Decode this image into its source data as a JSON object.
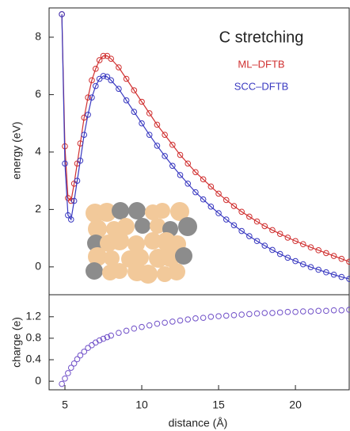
{
  "chart_data": [
    {
      "type": "line",
      "title": "C stretching",
      "ylabel": "energy (eV)",
      "x": [
        4.8,
        5.0,
        5.2,
        5.4,
        5.6,
        5.8,
        6.0,
        6.25,
        6.5,
        6.75,
        7.0,
        7.25,
        7.5,
        7.75,
        8.0,
        8.5,
        9,
        9.5,
        10,
        10.5,
        11,
        11.5,
        12,
        12.5,
        13,
        13.5,
        14,
        14.5,
        15,
        15.5,
        16,
        16.5,
        17,
        17.5,
        18,
        18.5,
        19,
        19.5,
        20,
        20.5,
        21,
        21.5,
        22,
        22.5,
        23,
        23.5
      ],
      "series": [
        {
          "name": "ML–DFTB",
          "color": "#d03030",
          "values": [
            8.8,
            4.2,
            2.4,
            2.3,
            2.9,
            3.6,
            4.3,
            5.2,
            5.9,
            6.5,
            6.9,
            7.2,
            7.35,
            7.35,
            7.25,
            6.95,
            6.55,
            6.15,
            5.75,
            5.35,
            4.95,
            4.6,
            4.25,
            3.9,
            3.6,
            3.3,
            3.05,
            2.8,
            2.55,
            2.33,
            2.12,
            1.92,
            1.75,
            1.58,
            1.42,
            1.28,
            1.15,
            1.02,
            0.9,
            0.79,
            0.68,
            0.58,
            0.48,
            0.38,
            0.28,
            0.18
          ]
        },
        {
          "name": "SCC–DFTB",
          "color": "#3838c0",
          "values": [
            8.8,
            3.6,
            1.8,
            1.65,
            2.3,
            3.0,
            3.7,
            4.6,
            5.3,
            5.9,
            6.3,
            6.55,
            6.65,
            6.62,
            6.5,
            6.2,
            5.8,
            5.4,
            5.0,
            4.6,
            4.22,
            3.86,
            3.52,
            3.2,
            2.9,
            2.6,
            2.35,
            2.1,
            1.87,
            1.65,
            1.45,
            1.25,
            1.07,
            0.9,
            0.74,
            0.59,
            0.45,
            0.32,
            0.2,
            0.09,
            -0.01,
            -0.1,
            -0.19,
            -0.27,
            -0.35,
            -0.42
          ]
        }
      ],
      "xlim": [
        3.97,
        23.5
      ],
      "ylim": [
        -0.97,
        9.02
      ],
      "yticks": [
        0,
        2,
        4,
        6,
        8
      ]
    },
    {
      "type": "scatter",
      "ylabel": "charge (e)",
      "xlabel": "distance (Å)",
      "x": [
        4.8,
        5.0,
        5.2,
        5.4,
        5.6,
        5.8,
        6.0,
        6.25,
        6.5,
        6.75,
        7.0,
        7.25,
        7.5,
        7.75,
        8.0,
        8.5,
        9,
        9.5,
        10,
        10.5,
        11,
        11.5,
        12,
        12.5,
        13,
        13.5,
        14,
        14.5,
        15,
        15.5,
        16,
        16.5,
        17,
        17.5,
        18,
        18.5,
        19,
        19.5,
        20,
        20.5,
        21,
        21.5,
        22,
        22.5,
        23,
        23.5
      ],
      "values": [
        -0.05,
        0.05,
        0.15,
        0.25,
        0.33,
        0.41,
        0.48,
        0.55,
        0.62,
        0.67,
        0.72,
        0.76,
        0.79,
        0.82,
        0.85,
        0.9,
        0.94,
        0.98,
        1.01,
        1.04,
        1.07,
        1.09,
        1.11,
        1.13,
        1.15,
        1.17,
        1.18,
        1.2,
        1.21,
        1.22,
        1.23,
        1.24,
        1.25,
        1.26,
        1.27,
        1.27,
        1.28,
        1.29,
        1.29,
        1.3,
        1.3,
        1.31,
        1.31,
        1.32,
        1.32,
        1.33
      ],
      "color": "#7050c8",
      "xlim": [
        3.97,
        23.5
      ],
      "ylim": [
        -0.16,
        1.61
      ],
      "xticks": [
        5,
        10,
        15,
        20
      ],
      "yticks": [
        0,
        0.4,
        0.8,
        1.2
      ]
    }
  ]
}
